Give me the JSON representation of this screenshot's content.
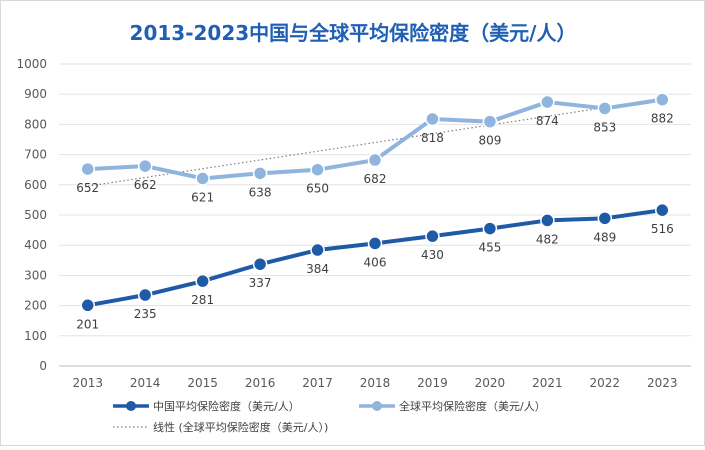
{
  "chart_data": {
    "type": "line",
    "title": "2013-2023中国与全球平均保险密度（美元/人）",
    "xlabel": "",
    "ylabel": "",
    "ylim": [
      0,
      1000
    ],
    "yticks": [
      0,
      100,
      200,
      300,
      400,
      500,
      600,
      700,
      800,
      900,
      1000
    ],
    "categories": [
      "2013",
      "2014",
      "2015",
      "2016",
      "2017",
      "2018",
      "2019",
      "2020",
      "2021",
      "2022",
      "2023"
    ],
    "series": [
      {
        "name": "中国平均保险密度（美元/人）",
        "values": [
          201,
          235,
          281,
          337,
          384,
          406,
          430,
          455,
          482,
          489,
          516
        ],
        "color": "#1f5aa6",
        "label_position": "below"
      },
      {
        "name": "全球平均保险密度（美元/人）",
        "values": [
          652,
          662,
          621,
          638,
          650,
          682,
          818,
          809,
          874,
          853,
          882
        ],
        "color": "#8fb4de",
        "label_position": "below"
      }
    ],
    "trendline": {
      "name": "线性 (全球平均保险密度（美元/人）)",
      "of_series": 1,
      "color": "#7f7f7f",
      "style": "dotted"
    },
    "grid": true,
    "legend_position": "bottom"
  }
}
